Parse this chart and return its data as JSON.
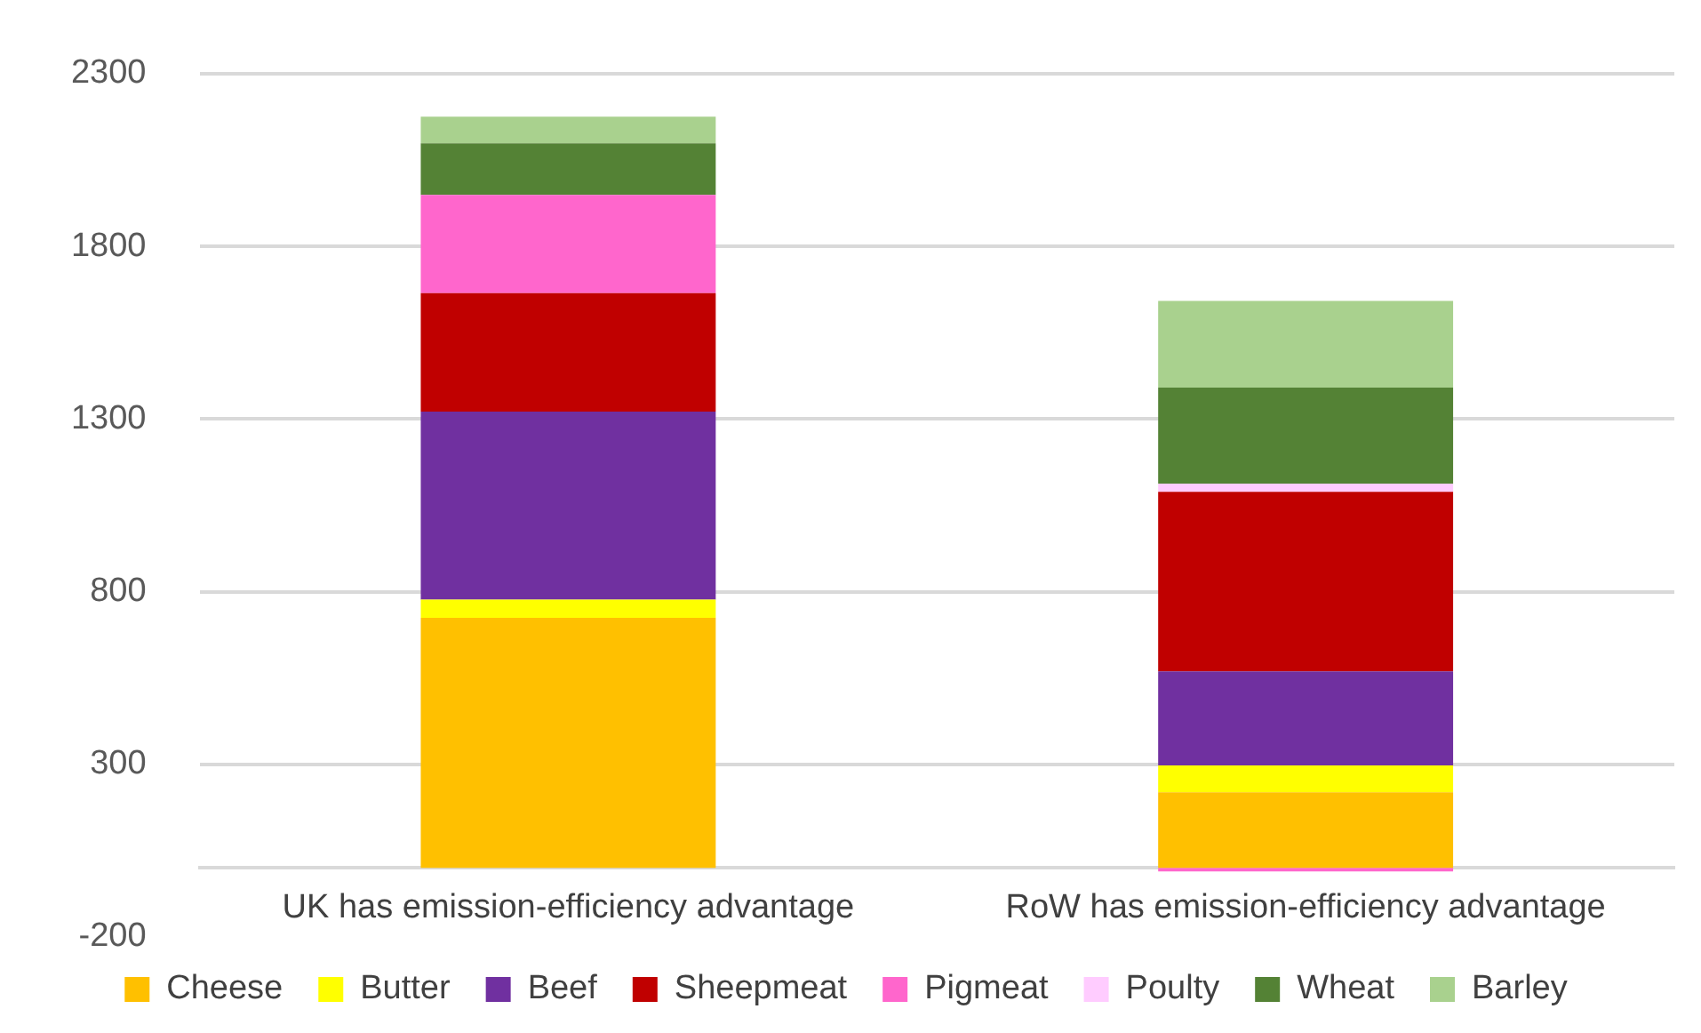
{
  "chart_data": {
    "type": "bar",
    "stacked": true,
    "categories": [
      "UK has emission-efficiency advantage",
      "RoW has emission-efficiency advantage"
    ],
    "series": [
      {
        "name": "Cheese",
        "color": "#ffc000",
        "values": [
          724,
          219
        ]
      },
      {
        "name": "Butter",
        "color": "#ffff00",
        "values": [
          53,
          78
        ]
      },
      {
        "name": "Beef",
        "color": "#7030a0",
        "values": [
          544,
          272
        ]
      },
      {
        "name": "Sheepmeat",
        "color": "#c00000",
        "values": [
          343,
          520
        ]
      },
      {
        "name": "Pigmeat",
        "color": "#ff66cc",
        "values": [
          285,
          -10
        ]
      },
      {
        "name": "Poulty",
        "color": "#ffccff",
        "values": [
          0,
          24
        ]
      },
      {
        "name": "Wheat",
        "color": "#548235",
        "values": [
          149,
          278
        ]
      },
      {
        "name": "Barley",
        "color": "#a9d18e",
        "values": [
          77,
          251
        ]
      }
    ],
    "ylim": [
      -200,
      2300
    ],
    "yticks": [
      -200,
      300,
      800,
      1300,
      1800,
      2300
    ],
    "grid": "y",
    "legend": "bottom"
  }
}
